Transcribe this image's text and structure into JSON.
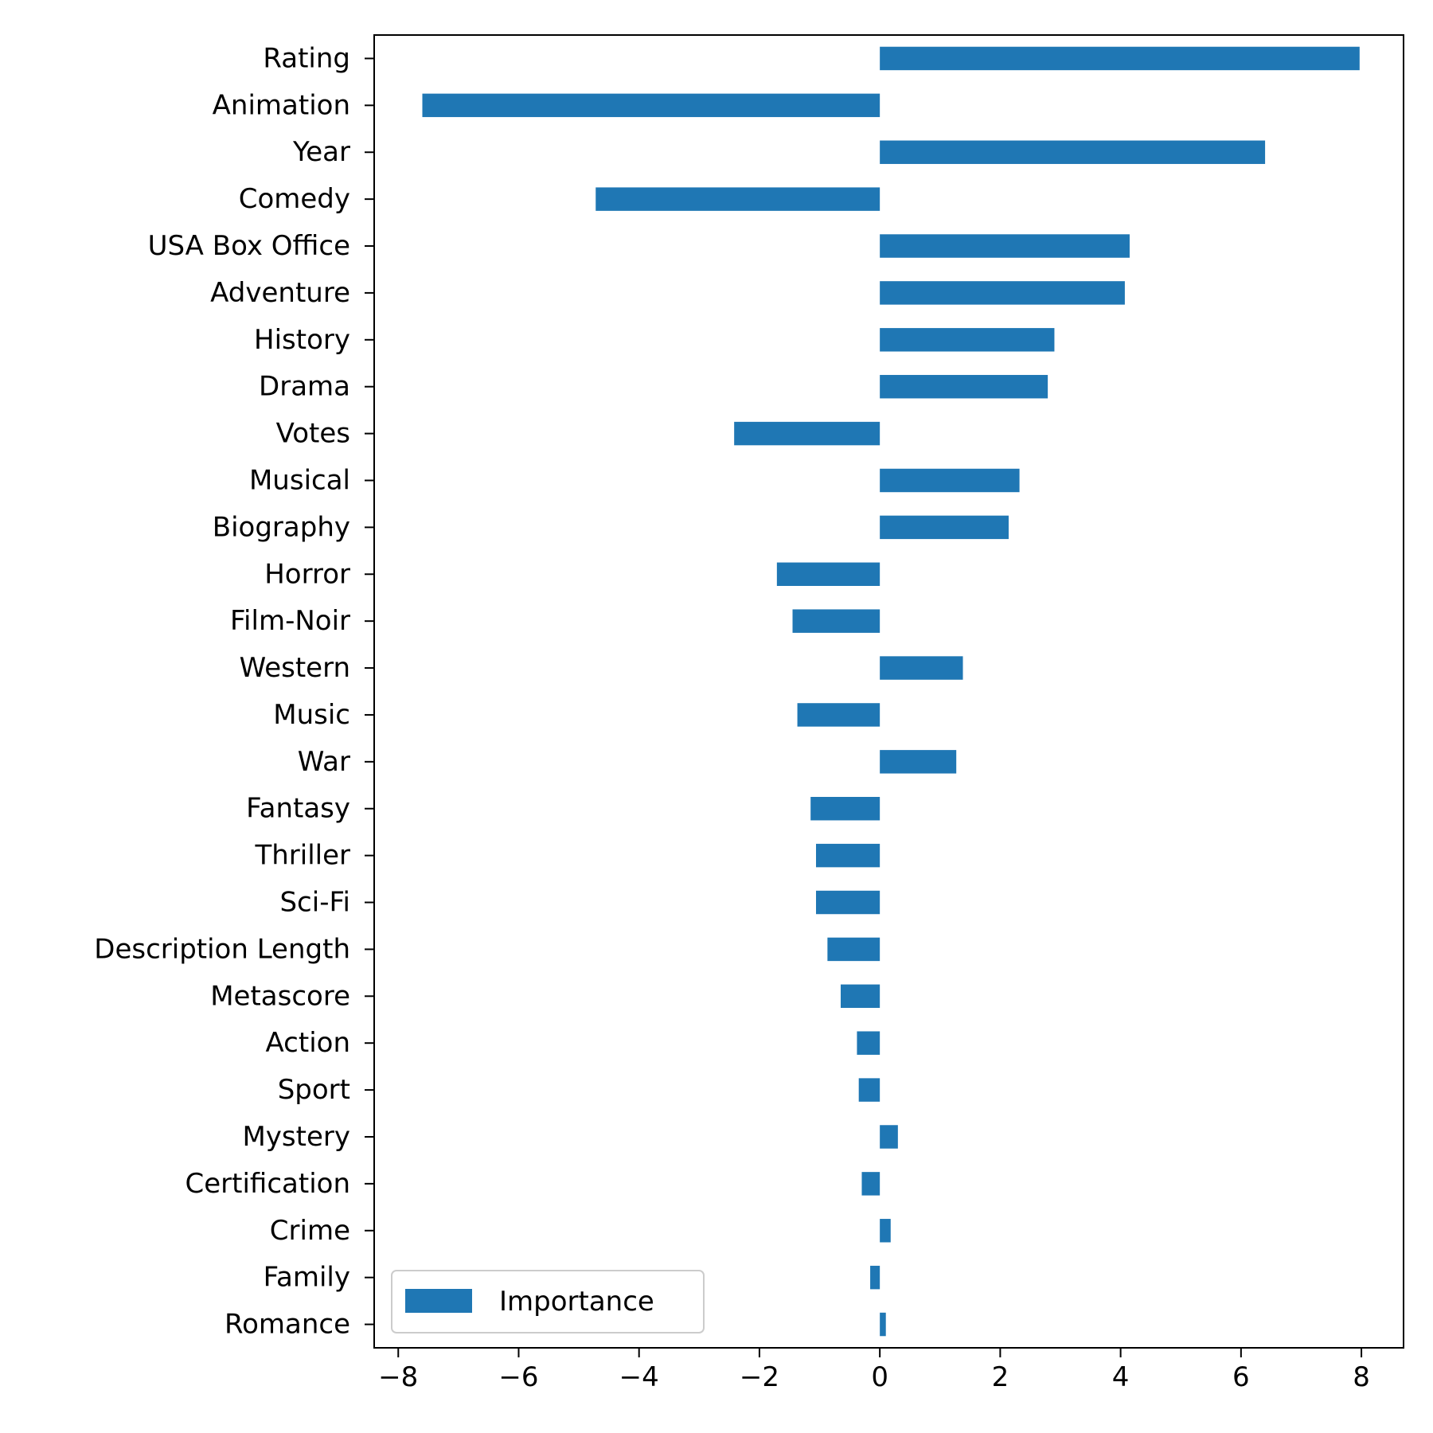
{
  "colors": {
    "bar": "#1f77b4",
    "axis": "#000000",
    "background": "#ffffff",
    "legend_border": "#cccccc"
  },
  "chart_data": {
    "type": "bar",
    "orientation": "horizontal",
    "title": "",
    "xlabel": "",
    "ylabel": "",
    "grid": false,
    "xlim": [
      -8.4,
      8.7
    ],
    "xticks": [
      -8,
      -6,
      -4,
      -2,
      0,
      2,
      4,
      6,
      8
    ],
    "xtick_labels": [
      "−8",
      "−6",
      "−4",
      "−2",
      "0",
      "2",
      "4",
      "6",
      "8"
    ],
    "legend": {
      "position": "lower-left",
      "entries": [
        "Importance"
      ]
    },
    "categories": [
      "Rating",
      "Animation",
      "Year",
      "Comedy",
      "USA Box Office",
      "Adventure",
      "History",
      "Drama",
      "Votes",
      "Musical",
      "Biography",
      "Horror",
      "Film-Noir",
      "Western",
      "Music",
      "War",
      "Fantasy",
      "Thriller",
      "Sci-Fi",
      "Description Length",
      "Metascore",
      "Action",
      "Sport",
      "Mystery",
      "Certification",
      "Crime",
      "Family",
      "Romance"
    ],
    "series": [
      {
        "name": "Importance",
        "values": [
          7.97,
          -7.6,
          6.4,
          -4.72,
          4.15,
          4.07,
          2.9,
          2.79,
          -2.42,
          2.32,
          2.14,
          -1.71,
          -1.45,
          1.38,
          -1.37,
          1.27,
          -1.15,
          -1.06,
          -1.06,
          -0.87,
          -0.65,
          -0.38,
          -0.35,
          0.3,
          -0.3,
          0.18,
          -0.16,
          0.1
        ]
      }
    ]
  }
}
